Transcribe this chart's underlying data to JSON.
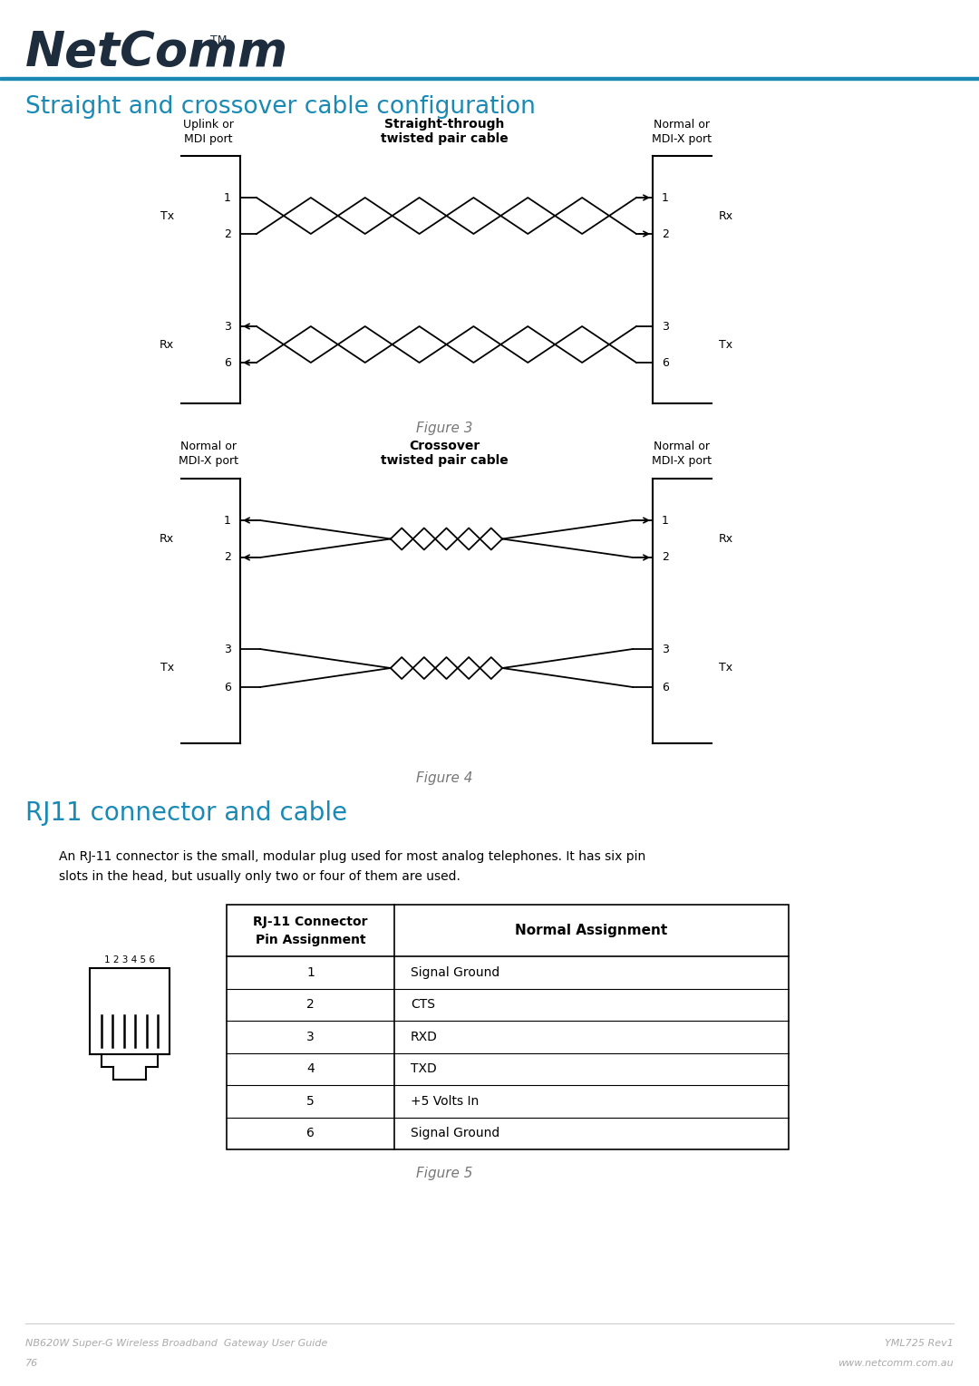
{
  "title_section": "Straight and crossover cable configuration",
  "title_color": "#1a8ab5",
  "header_bar_color": "#1a8ab5",
  "background_color": "#ffffff",
  "figure3_caption": "Figure 3",
  "figure4_caption": "Figure 4",
  "figure5_caption": "Figure 5",
  "section2_title": "RJ11 connector and cable",
  "section2_color": "#1a8ab5",
  "section2_text_line1": "An RJ-11 connector is the small, modular plug used for most analog telephones. It has six pin",
  "section2_text_line2": "slots in the head, but usually only two or four of them are used.",
  "table_header1_line1": "RJ-11 Connector",
  "table_header1_line2": "Pin Assignment",
  "table_header2": "Normal Assignment",
  "table_pins": [
    "1",
    "2",
    "3",
    "4",
    "5",
    "6"
  ],
  "table_assignments": [
    "Signal Ground",
    "CTS",
    "RXD",
    "TXD",
    "+5 Volts In",
    "Signal Ground"
  ],
  "footer_left1": "NB620W Super-G Wireless Broadband  Gateway User Guide",
  "footer_left2": "76",
  "footer_right1": "YML725 Rev1",
  "footer_right2": "www.netcomm.com.au",
  "footer_color": "#aaaaaa",
  "netcomm_color": "#1e2d3d",
  "fig3_left_label1": "Uplink or",
  "fig3_left_label2": "MDI port",
  "fig3_right_label1": "Normal or",
  "fig3_right_label2": "MDI-X port",
  "fig3_center_label1": "Straight-through",
  "fig3_center_label2": "twisted pair cable",
  "fig4_left_label1": "Normal or",
  "fig4_left_label2": "MDI-X port",
  "fig4_right_label1": "Normal or",
  "fig4_right_label2": "MDI-X port",
  "fig4_center_label1": "Crossover",
  "fig4_center_label2": "twisted pair cable"
}
